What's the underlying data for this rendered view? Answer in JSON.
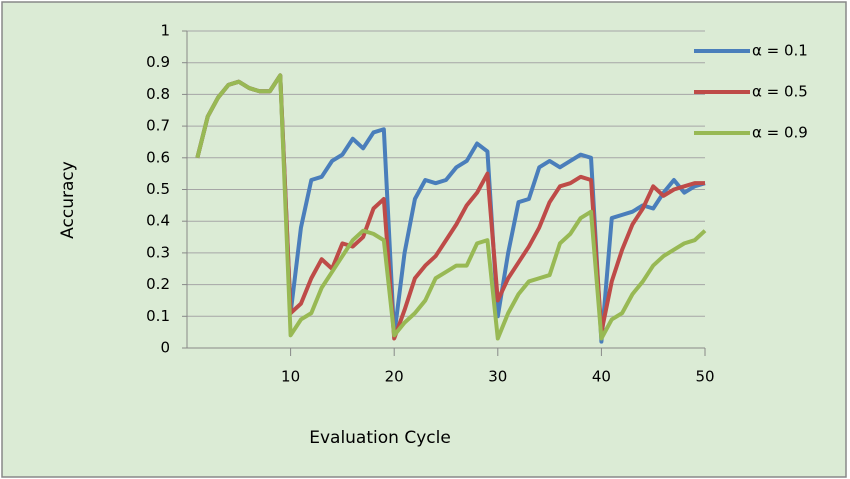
{
  "chart_data": {
    "type": "line",
    "x_label": "Evaluation Cycle",
    "y_label": "Accuracy",
    "x": [
      1,
      2,
      3,
      4,
      5,
      6,
      7,
      8,
      9,
      10,
      11,
      12,
      13,
      14,
      15,
      16,
      17,
      18,
      19,
      20,
      21,
      22,
      23,
      24,
      25,
      26,
      27,
      28,
      29,
      30,
      31,
      32,
      33,
      34,
      35,
      36,
      37,
      38,
      39,
      40,
      41,
      42,
      43,
      44,
      45,
      46,
      47,
      48,
      49,
      50
    ],
    "xlim": [
      0,
      50
    ],
    "xticks": [
      10,
      20,
      30,
      40,
      50
    ],
    "ylim": [
      0,
      1
    ],
    "yticks": [
      0,
      0.1,
      0.2,
      0.3,
      0.4,
      0.5,
      0.6,
      0.7,
      0.8,
      0.9,
      1
    ],
    "grid": true,
    "legend": "upper right",
    "series": [
      {
        "name": "α = 0.1",
        "color": "#4a7ebb",
        "values": [
          0.6,
          0.73,
          0.79,
          0.83,
          0.84,
          0.82,
          0.81,
          0.81,
          0.86,
          0.11,
          0.38,
          0.53,
          0.54,
          0.59,
          0.61,
          0.66,
          0.63,
          0.68,
          0.69,
          0.04,
          0.3,
          0.47,
          0.53,
          0.52,
          0.53,
          0.57,
          0.59,
          0.645,
          0.62,
          0.1,
          0.3,
          0.46,
          0.47,
          0.57,
          0.59,
          0.57,
          0.59,
          0.61,
          0.6,
          0.02,
          0.41,
          0.42,
          0.43,
          0.45,
          0.44,
          0.49,
          0.53,
          0.49,
          0.51,
          0.52
        ]
      },
      {
        "name": "α = 0.5",
        "color": "#be4b48",
        "values": [
          0.6,
          0.73,
          0.79,
          0.83,
          0.84,
          0.82,
          0.81,
          0.81,
          0.86,
          0.11,
          0.14,
          0.22,
          0.28,
          0.25,
          0.33,
          0.32,
          0.35,
          0.44,
          0.47,
          0.03,
          0.12,
          0.22,
          0.26,
          0.29,
          0.34,
          0.39,
          0.45,
          0.49,
          0.55,
          0.15,
          0.22,
          0.27,
          0.32,
          0.38,
          0.46,
          0.51,
          0.52,
          0.54,
          0.53,
          0.05,
          0.21,
          0.31,
          0.39,
          0.44,
          0.51,
          0.48,
          0.5,
          0.51,
          0.52,
          0.52
        ]
      },
      {
        "name": "α = 0.9",
        "color": "#98b954",
        "values": [
          0.6,
          0.73,
          0.79,
          0.83,
          0.84,
          0.82,
          0.81,
          0.81,
          0.86,
          0.04,
          0.09,
          0.11,
          0.19,
          0.24,
          0.29,
          0.34,
          0.37,
          0.36,
          0.34,
          0.04,
          0.08,
          0.11,
          0.15,
          0.22,
          0.24,
          0.26,
          0.26,
          0.33,
          0.34,
          0.03,
          0.11,
          0.17,
          0.21,
          0.22,
          0.23,
          0.33,
          0.36,
          0.41,
          0.43,
          0.03,
          0.09,
          0.11,
          0.17,
          0.21,
          0.26,
          0.29,
          0.31,
          0.33,
          0.34,
          0.37
        ]
      }
    ]
  }
}
